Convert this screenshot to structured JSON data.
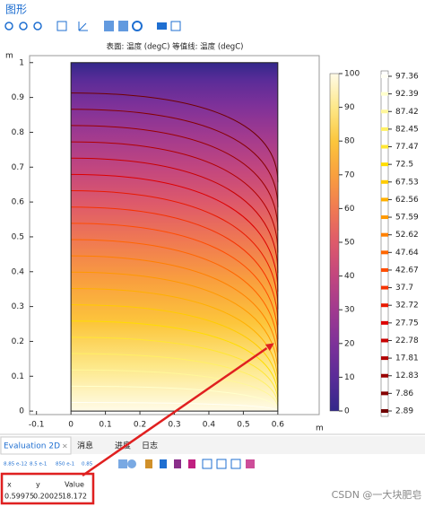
{
  "window": {
    "title": "图形"
  },
  "chart_data": {
    "type": "heatmap-contour",
    "title": "表面: 温度 (degC) 等值线: 温度 (degC)",
    "x_unit": "m",
    "y_unit": "m",
    "xlim": [
      -0.12,
      0.72
    ],
    "ylim": [
      -0.01,
      1.02
    ],
    "xticks": [
      -0.1,
      0,
      0.1,
      0.2,
      0.3,
      0.4,
      0.5,
      0.6
    ],
    "yticks": [
      0,
      0.1,
      0.2,
      0.3,
      0.4,
      0.5,
      0.6,
      0.7,
      0.8,
      0.9,
      1
    ],
    "domain_x": [
      0,
      0.6
    ],
    "domain_y": [
      0,
      1
    ],
    "colorbar": {
      "lim": [
        0,
        100
      ],
      "ticks": [
        0,
        10,
        20,
        30,
        40,
        50,
        60,
        70,
        80,
        90,
        100
      ],
      "colors": [
        "#32288a",
        "#5a2c98",
        "#7e3199",
        "#a13a8f",
        "#c2467f",
        "#de5a6a",
        "#f07a52",
        "#f9a03e",
        "#fcc63c",
        "#fde889",
        "#fffbe8"
      ]
    },
    "contour_levels": [
      97.36,
      92.39,
      87.42,
      82.45,
      77.47,
      72.5,
      67.53,
      62.56,
      57.59,
      52.62,
      47.64,
      42.67,
      37.7,
      32.72,
      27.75,
      22.78,
      17.81,
      12.83,
      7.86,
      2.89
    ],
    "contour_colors": [
      "#fffff5",
      "#ffffcc",
      "#fff79a",
      "#fff066",
      "#ffe633",
      "#ffdd00",
      "#ffcc00",
      "#ffb000",
      "#ff9900",
      "#ff8000",
      "#ff6600",
      "#ff4d00",
      "#f53300",
      "#e81a00",
      "#dd0000",
      "#c80000",
      "#b00000",
      "#990000",
      "#850000",
      "#700000"
    ]
  },
  "bottom_panel": {
    "tabs": [
      "Evaluation 2D",
      "消息",
      "进度",
      "日志"
    ],
    "toolbar_labels": [
      "8.85 e-12",
      "8.5 e-1",
      "850 e-1",
      "0.85"
    ],
    "table": {
      "columns": [
        "x",
        "y",
        "Value"
      ],
      "rows": [
        [
          0.59975,
          0.20025,
          18.172
        ]
      ]
    }
  },
  "watermark": "CSDN @一大块肥皂"
}
